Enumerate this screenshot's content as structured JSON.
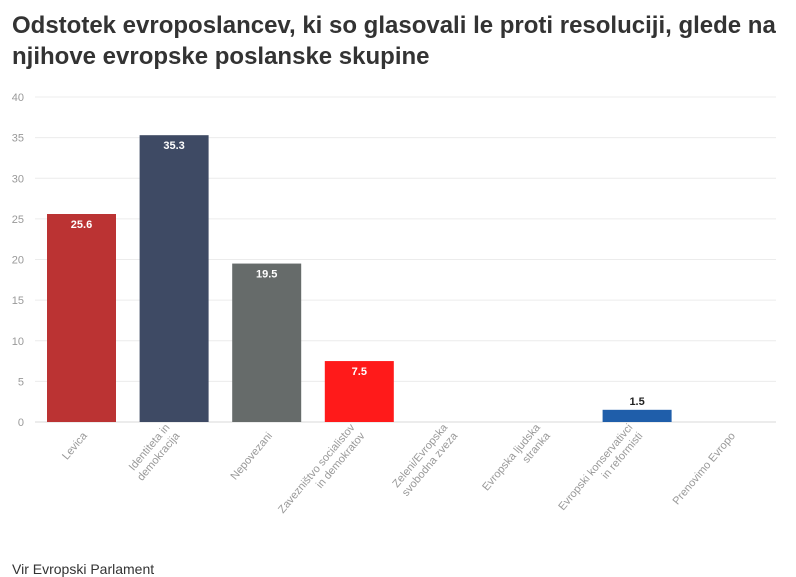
{
  "chart_data": {
    "type": "bar",
    "title": "Odstotek evroposlancev, ki so glasovali le proti resoluciji, glede na njihove evropske poslanske skupine",
    "xlabel": "",
    "ylabel": "",
    "ylim": [
      0,
      40
    ],
    "yticks": [
      "0",
      "5",
      "10",
      "15",
      "20",
      "25",
      "30",
      "35",
      "40"
    ],
    "grid": true,
    "categories": [
      [
        "Levica"
      ],
      [
        "Identiteta in",
        "demokracija"
      ],
      [
        "Nepovezani"
      ],
      [
        "Zavezništvo socialistov",
        "in demokratov"
      ],
      [
        "Zeleni/Evropska",
        "svobodna zveza"
      ],
      [
        "Evropska ljudska",
        "stranka"
      ],
      [
        "Evropski konservativci",
        "in reformisti"
      ],
      [
        "Prenovimo Evropo"
      ]
    ],
    "values": [
      25.6,
      35.3,
      19.5,
      7.5,
      0,
      0,
      1.5,
      0
    ],
    "labels": [
      "25.6",
      "35.3",
      "19.5",
      "7.5",
      "",
      "",
      "1.5",
      ""
    ],
    "colors": [
      "#BB3333",
      "#3E4A64",
      "#666B6A",
      "#FF1A1A",
      "#2E8B57",
      "#2A5CA8",
      "#1F5EAA",
      "#F5C518"
    ]
  },
  "source": {
    "label": "Vir",
    "text": "Evropski Parlament"
  }
}
